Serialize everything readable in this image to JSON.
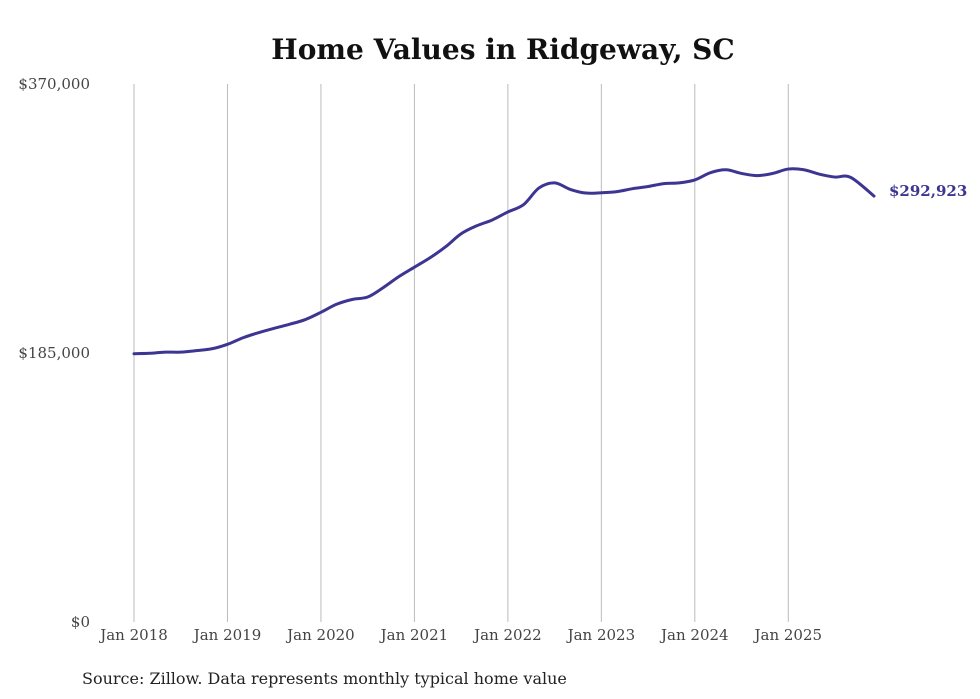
{
  "chart_data": {
    "type": "line",
    "title": "Home Values in Ridgeway, SC",
    "source": "Source: Zillow. Data represents monthly typical home value",
    "ylim": [
      0,
      370000
    ],
    "y_ticks": [
      {
        "value": 0,
        "label": "$0"
      },
      {
        "value": 185000,
        "label": "$185,000"
      },
      {
        "value": 370000,
        "label": "$370,000"
      }
    ],
    "x_range": [
      2018.0,
      2025.917
    ],
    "x_ticks": [
      {
        "value": 2018,
        "label": "Jan 2018"
      },
      {
        "value": 2019,
        "label": "Jan 2019"
      },
      {
        "value": 2020,
        "label": "Jan 2020"
      },
      {
        "value": 2021,
        "label": "Jan 2021"
      },
      {
        "value": 2022,
        "label": "Jan 2022"
      },
      {
        "value": 2023,
        "label": "Jan 2023"
      },
      {
        "value": 2024,
        "label": "Jan 2024"
      },
      {
        "value": 2025,
        "label": "Jan 2025"
      }
    ],
    "line_color": "#3d3592",
    "end_label": "$292,923",
    "series": [
      {
        "name": "Typical home value",
        "x": [
          2018.0,
          2018.167,
          2018.333,
          2018.5,
          2018.667,
          2018.833,
          2019.0,
          2019.167,
          2019.333,
          2019.5,
          2019.667,
          2019.833,
          2020.0,
          2020.167,
          2020.333,
          2020.5,
          2020.667,
          2020.833,
          2021.0,
          2021.167,
          2021.333,
          2021.5,
          2021.667,
          2021.833,
          2022.0,
          2022.167,
          2022.333,
          2022.5,
          2022.667,
          2022.833,
          2023.0,
          2023.167,
          2023.333,
          2023.5,
          2023.667,
          2023.833,
          2024.0,
          2024.167,
          2024.333,
          2024.5,
          2024.667,
          2024.833,
          2025.0,
          2025.167,
          2025.333,
          2025.5,
          2025.667,
          2025.917
        ],
        "values": [
          184500,
          184800,
          185600,
          185600,
          186600,
          187900,
          191000,
          195500,
          199000,
          202000,
          204800,
          208000,
          213000,
          218500,
          221800,
          223500,
          230000,
          237500,
          244000,
          250500,
          258000,
          267000,
          272500,
          276500,
          282000,
          287000,
          298500,
          302000,
          297500,
          295000,
          295200,
          296000,
          298000,
          299500,
          301500,
          302000,
          304000,
          309000,
          311000,
          308500,
          307000,
          308500,
          311500,
          311000,
          308000,
          306000,
          305800,
          292923
        ]
      }
    ]
  }
}
